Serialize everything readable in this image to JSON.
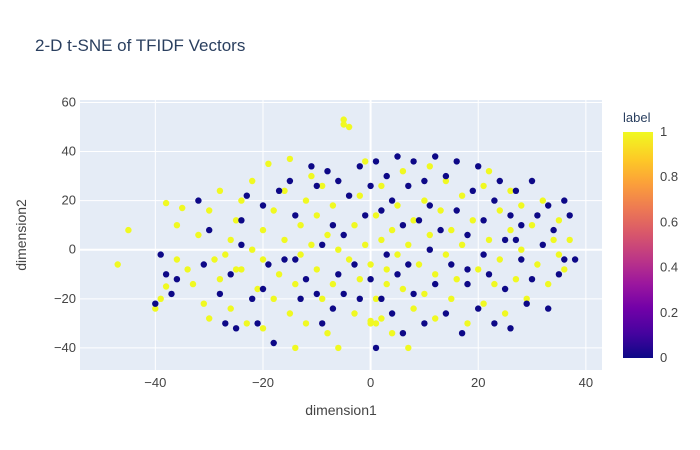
{
  "chart_data": {
    "type": "scatter",
    "title": "2-D t-SNE of TFIDF Vectors",
    "xlabel": "dimension1",
    "ylabel": "dimension2",
    "xlim": [
      -54,
      43
    ],
    "ylim": [
      -49,
      61
    ],
    "x_ticks": [
      "−40",
      "−20",
      "0",
      "20",
      "40"
    ],
    "y_ticks": [
      "−40",
      "−20",
      "0",
      "20",
      "40",
      "60"
    ],
    "grid": true,
    "legend": {
      "type": "colorbar",
      "title": "label",
      "ticks": [
        "0",
        "0.2",
        "0.4",
        "0.6",
        "0.8",
        "1"
      ],
      "placement": "right"
    },
    "colors": {
      "label_0": "#0d0887",
      "label_1": "#f0f921",
      "plot_bg": "#e5ecf6",
      "grid": "#ffffff"
    },
    "series": [
      {
        "label_value": 1,
        "points": [
          [
            -47,
            -6
          ],
          [
            -45,
            8
          ],
          [
            -40,
            -24
          ],
          [
            -39,
            -20
          ],
          [
            -38,
            -15
          ],
          [
            -38,
            19
          ],
          [
            -36,
            -4
          ],
          [
            -36,
            10
          ],
          [
            -35,
            17
          ],
          [
            -34,
            -8
          ],
          [
            -33,
            -14
          ],
          [
            -32,
            6
          ],
          [
            -31,
            -22
          ],
          [
            -30,
            16
          ],
          [
            -29,
            -4
          ],
          [
            -28,
            -12
          ],
          [
            -28,
            24
          ],
          [
            -27,
            -2
          ],
          [
            -26,
            4
          ],
          [
            -26,
            -24
          ],
          [
            -25,
            12
          ],
          [
            -24,
            -8
          ],
          [
            -24,
            20
          ],
          [
            -23,
            -30
          ],
          [
            -22,
            0
          ],
          [
            -22,
            28
          ],
          [
            -21,
            -16
          ],
          [
            -20,
            8
          ],
          [
            -20,
            -4
          ],
          [
            -19,
            35
          ],
          [
            -18,
            -20
          ],
          [
            -18,
            16
          ],
          [
            -17,
            -10
          ],
          [
            -16,
            4
          ],
          [
            -16,
            24
          ],
          [
            -15,
            -26
          ],
          [
            -15,
            37
          ],
          [
            -14,
            -14
          ],
          [
            -13,
            10
          ],
          [
            -13,
            -2
          ],
          [
            -12,
            20
          ],
          [
            -12,
            -30
          ],
          [
            -11,
            2
          ],
          [
            -11,
            30
          ],
          [
            -10,
            -8
          ],
          [
            -10,
            14
          ],
          [
            -9,
            -20
          ],
          [
            -9,
            26
          ],
          [
            -8,
            6
          ],
          [
            -8,
            -34
          ],
          [
            -7,
            -14
          ],
          [
            -7,
            18
          ],
          [
            -6,
            0
          ],
          [
            -6,
            -40
          ],
          [
            -5,
            51
          ],
          [
            -5,
            53
          ],
          [
            -4,
            50
          ],
          [
            -4,
            -4
          ],
          [
            -3,
            10
          ],
          [
            -3,
            -26
          ],
          [
            -2,
            22
          ],
          [
            -2,
            -12
          ],
          [
            -1,
            2
          ],
          [
            -1,
            36
          ],
          [
            0,
            -6
          ],
          [
            0,
            -30
          ],
          [
            1,
            14
          ],
          [
            1,
            -20
          ],
          [
            2,
            4
          ],
          [
            2,
            26
          ],
          [
            3,
            -14
          ],
          [
            3,
            -8
          ],
          [
            4,
            8
          ],
          [
            4,
            -34
          ],
          [
            5,
            18
          ],
          [
            5,
            -2
          ],
          [
            6,
            -16
          ],
          [
            6,
            32
          ],
          [
            7,
            2
          ],
          [
            7,
            -40
          ],
          [
            8,
            12
          ],
          [
            8,
            -24
          ],
          [
            9,
            -6
          ],
          [
            10,
            20
          ],
          [
            10,
            -18
          ],
          [
            11,
            6
          ],
          [
            11,
            34
          ],
          [
            12,
            -10
          ],
          [
            12,
            -28
          ],
          [
            13,
            16
          ],
          [
            14,
            -2
          ],
          [
            14,
            28
          ],
          [
            15,
            -20
          ],
          [
            15,
            8
          ],
          [
            16,
            -12
          ],
          [
            17,
            22
          ],
          [
            17,
            2
          ],
          [
            18,
            -30
          ],
          [
            19,
            12
          ],
          [
            20,
            -8
          ],
          [
            21,
            26
          ],
          [
            21,
            -22
          ],
          [
            22,
            4
          ],
          [
            22,
            32
          ],
          [
            23,
            -14
          ],
          [
            24,
            16
          ],
          [
            24,
            -4
          ],
          [
            25,
            -26
          ],
          [
            26,
            8
          ],
          [
            26,
            24
          ],
          [
            27,
            -12
          ],
          [
            28,
            0
          ],
          [
            28,
            18
          ],
          [
            29,
            -20
          ],
          [
            30,
            10
          ],
          [
            31,
            -6
          ],
          [
            32,
            20
          ],
          [
            33,
            -14
          ],
          [
            34,
            4
          ],
          [
            35,
            -2
          ],
          [
            35,
            12
          ],
          [
            36,
            -8
          ],
          [
            37,
            4
          ],
          [
            -14,
            -40
          ],
          [
            -30,
            -28
          ],
          [
            -25,
            -8
          ],
          [
            -20,
            -32
          ],
          [
            0,
            -29
          ],
          [
            1,
            -30
          ],
          [
            2,
            -28
          ]
        ]
      },
      {
        "label_value": 0,
        "points": [
          [
            -40,
            -22
          ],
          [
            -39,
            -2
          ],
          [
            -38,
            -10
          ],
          [
            -37,
            -18
          ],
          [
            -36,
            -12
          ],
          [
            -32,
            20
          ],
          [
            -31,
            -6
          ],
          [
            -30,
            8
          ],
          [
            -28,
            -18
          ],
          [
            -27,
            -30
          ],
          [
            -26,
            -10
          ],
          [
            -25,
            -32
          ],
          [
            -24,
            2
          ],
          [
            -23,
            22
          ],
          [
            -22,
            -20
          ],
          [
            -21,
            -30
          ],
          [
            -20,
            18
          ],
          [
            -19,
            -6
          ],
          [
            -18,
            -38
          ],
          [
            -17,
            24
          ],
          [
            -16,
            -4
          ],
          [
            -15,
            28
          ],
          [
            -14,
            14
          ],
          [
            -13,
            -20
          ],
          [
            -12,
            -12
          ],
          [
            -11,
            34
          ],
          [
            -10,
            26
          ],
          [
            -9,
            2
          ],
          [
            -9,
            -30
          ],
          [
            -8,
            32
          ],
          [
            -7,
            10
          ],
          [
            -7,
            -24
          ],
          [
            -6,
            28
          ],
          [
            -5,
            -18
          ],
          [
            -5,
            6
          ],
          [
            -4,
            22
          ],
          [
            -3,
            -6
          ],
          [
            -2,
            34
          ],
          [
            -2,
            -20
          ],
          [
            -1,
            14
          ],
          [
            0,
            26
          ],
          [
            0,
            -12
          ],
          [
            1,
            -40
          ],
          [
            1,
            36
          ],
          [
            2,
            16
          ],
          [
            2,
            -20
          ],
          [
            3,
            30
          ],
          [
            3,
            -2
          ],
          [
            4,
            20
          ],
          [
            4,
            -26
          ],
          [
            5,
            38
          ],
          [
            5,
            -10
          ],
          [
            6,
            10
          ],
          [
            6,
            -34
          ],
          [
            7,
            26
          ],
          [
            7,
            -6
          ],
          [
            8,
            36
          ],
          [
            8,
            -18
          ],
          [
            9,
            12
          ],
          [
            10,
            28
          ],
          [
            10,
            -30
          ],
          [
            11,
            0
          ],
          [
            11,
            18
          ],
          [
            12,
            38
          ],
          [
            12,
            -14
          ],
          [
            13,
            8
          ],
          [
            14,
            30
          ],
          [
            14,
            -26
          ],
          [
            15,
            -6
          ],
          [
            16,
            16
          ],
          [
            16,
            36
          ],
          [
            17,
            -34
          ],
          [
            18,
            6
          ],
          [
            18,
            -14
          ],
          [
            19,
            24
          ],
          [
            20,
            -24
          ],
          [
            20,
            34
          ],
          [
            21,
            12
          ],
          [
            21,
            -2
          ],
          [
            22,
            -10
          ],
          [
            23,
            20
          ],
          [
            23,
            -30
          ],
          [
            24,
            28
          ],
          [
            25,
            4
          ],
          [
            25,
            -16
          ],
          [
            26,
            14
          ],
          [
            26,
            -32
          ],
          [
            27,
            24
          ],
          [
            28,
            -4
          ],
          [
            28,
            10
          ],
          [
            29,
            -22
          ],
          [
            30,
            28
          ],
          [
            30,
            -12
          ],
          [
            31,
            14
          ],
          [
            32,
            2
          ],
          [
            33,
            18
          ],
          [
            33,
            -24
          ],
          [
            34,
            8
          ],
          [
            35,
            -10
          ],
          [
            36,
            20
          ],
          [
            36,
            -4
          ],
          [
            37,
            14
          ],
          [
            38,
            -4
          ],
          [
            -20,
            -16
          ],
          [
            -10,
            -18
          ],
          [
            -14,
            -4
          ],
          [
            -24,
            12
          ],
          [
            -6,
            -10
          ],
          [
            18,
            -8
          ],
          [
            27,
            4
          ]
        ]
      }
    ]
  }
}
